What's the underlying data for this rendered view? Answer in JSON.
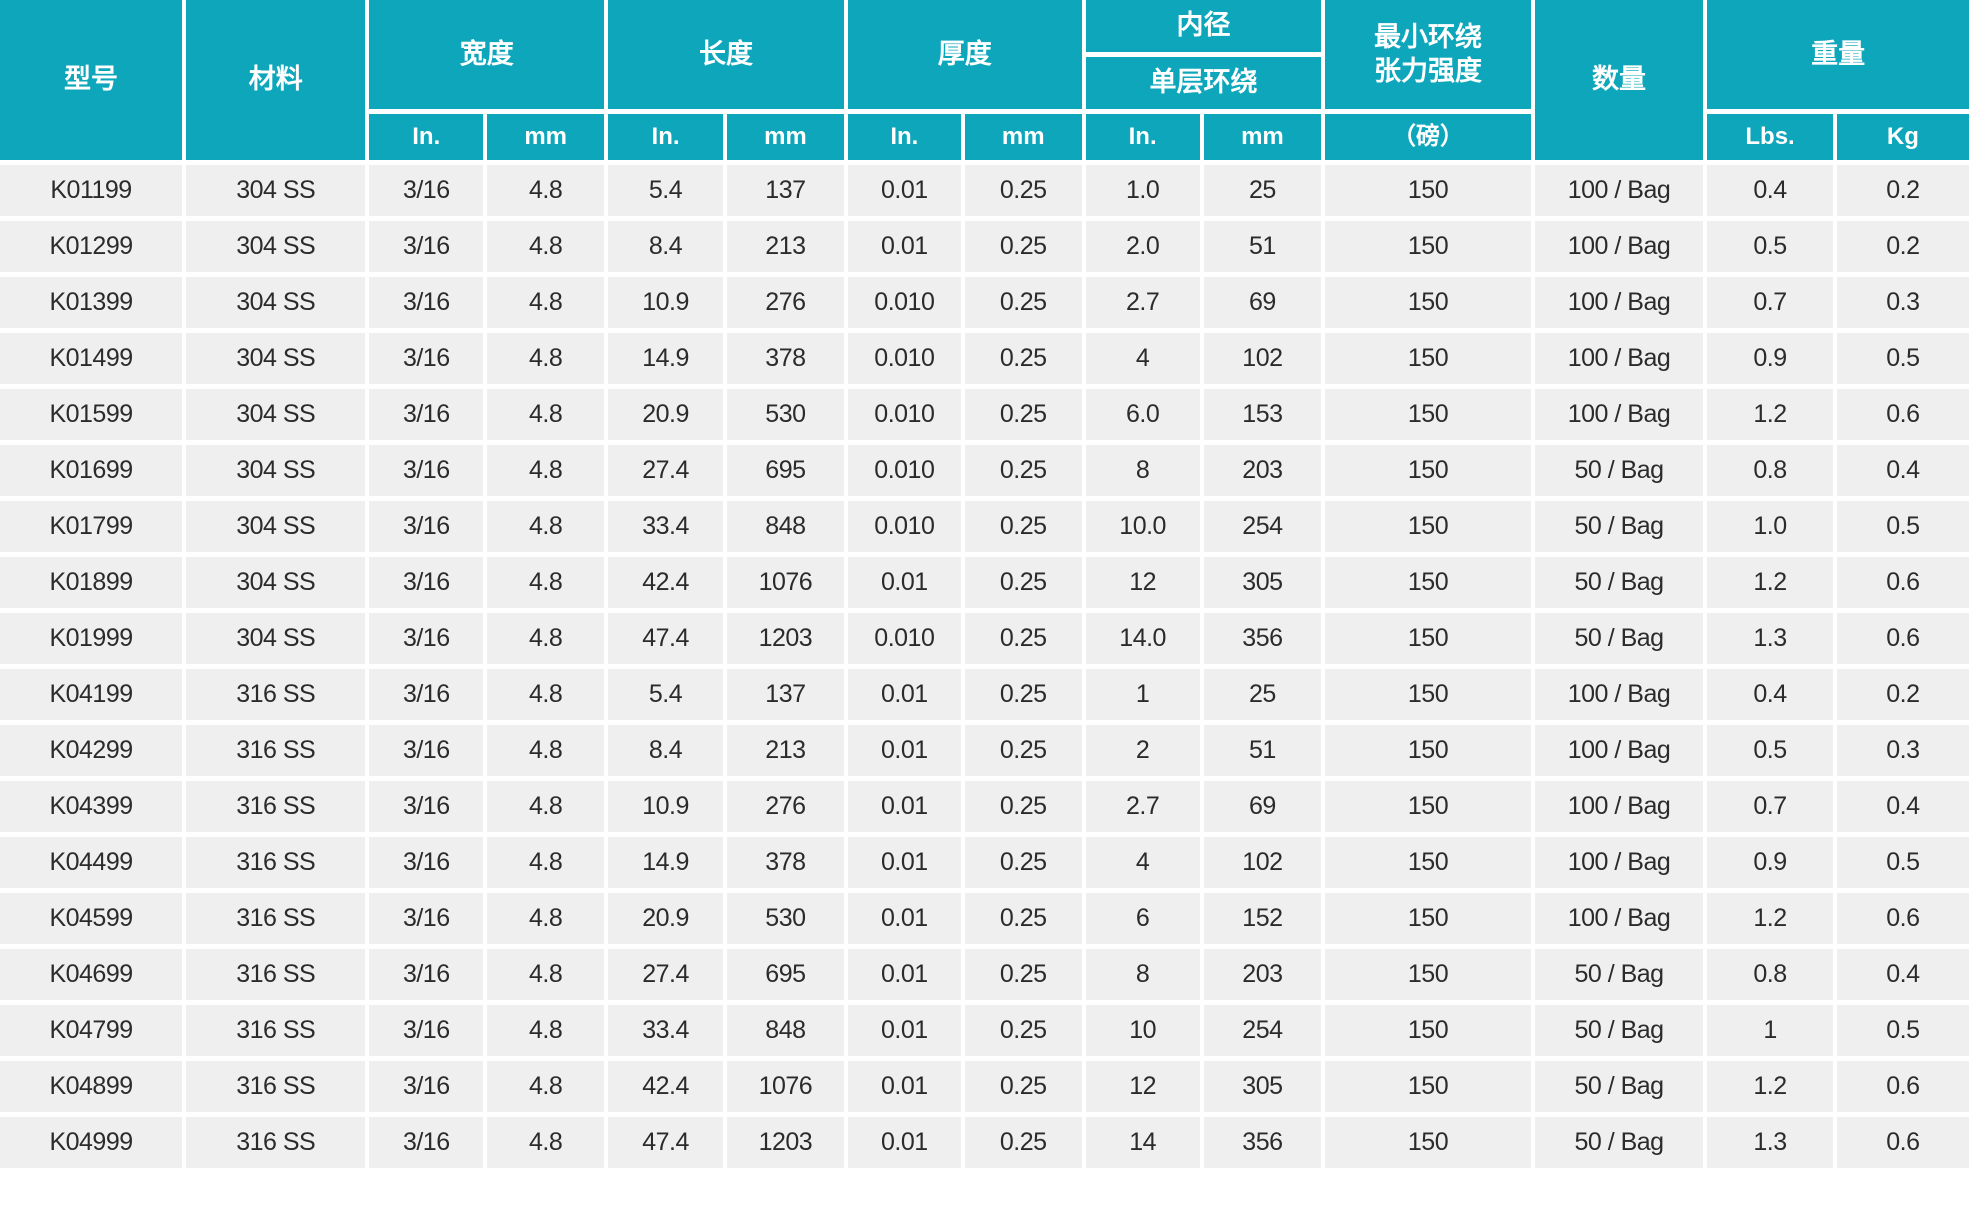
{
  "accent_color": "#0da6bb",
  "row_color": "#efefef",
  "text_color": "#2b2b2b",
  "header": {
    "model": "型号",
    "material": "材料",
    "width": "宽度",
    "length": "长度",
    "thickness": "厚度",
    "inner_diameter": "内径",
    "single_layer_wrap": "单层环绕",
    "min_strength_line1": "最小环绕",
    "min_strength_line2": "张力强度",
    "strength_unit": "（磅）",
    "quantity": "数量",
    "weight": "重量",
    "unit_in": "In.",
    "unit_mm": "mm",
    "unit_lbs": "Lbs.",
    "unit_kg": "Kg"
  },
  "columns": [
    "model",
    "material",
    "width_in",
    "width_mm",
    "length_in",
    "length_mm",
    "thickness_in",
    "thickness_mm",
    "inner_dia_in",
    "inner_dia_mm",
    "min_strength_lbs",
    "quantity",
    "weight_lbs",
    "weight_kg"
  ],
  "rows": [
    [
      "K01199",
      "304 SS",
      "3/16",
      "4.8",
      "5.4",
      "137",
      "0.01",
      "0.25",
      "1.0",
      "25",
      "150",
      "100 / Bag",
      "0.4",
      "0.2"
    ],
    [
      "K01299",
      "304 SS",
      "3/16",
      "4.8",
      "8.4",
      "213",
      "0.01",
      "0.25",
      "2.0",
      "51",
      "150",
      "100 / Bag",
      "0.5",
      "0.2"
    ],
    [
      "K01399",
      "304 SS",
      "3/16",
      "4.8",
      "10.9",
      "276",
      "0.010",
      "0.25",
      "2.7",
      "69",
      "150",
      "100 / Bag",
      "0.7",
      "0.3"
    ],
    [
      "K01499",
      "304 SS",
      "3/16",
      "4.8",
      "14.9",
      "378",
      "0.010",
      "0.25",
      "4",
      "102",
      "150",
      "100 / Bag",
      "0.9",
      "0.5"
    ],
    [
      "K01599",
      "304 SS",
      "3/16",
      "4.8",
      "20.9",
      "530",
      "0.010",
      "0.25",
      "6.0",
      "153",
      "150",
      "100 / Bag",
      "1.2",
      "0.6"
    ],
    [
      "K01699",
      "304 SS",
      "3/16",
      "4.8",
      "27.4",
      "695",
      "0.010",
      "0.25",
      "8",
      "203",
      "150",
      "50 / Bag",
      "0.8",
      "0.4"
    ],
    [
      "K01799",
      "304 SS",
      "3/16",
      "4.8",
      "33.4",
      "848",
      "0.010",
      "0.25",
      "10.0",
      "254",
      "150",
      "50 / Bag",
      "1.0",
      "0.5"
    ],
    [
      "K01899",
      "304 SS",
      "3/16",
      "4.8",
      "42.4",
      "1076",
      "0.01",
      "0.25",
      "12",
      "305",
      "150",
      "50 / Bag",
      "1.2",
      "0.6"
    ],
    [
      "K01999",
      "304 SS",
      "3/16",
      "4.8",
      "47.4",
      "1203",
      "0.010",
      "0.25",
      "14.0",
      "356",
      "150",
      "50 / Bag",
      "1.3",
      "0.6"
    ],
    [
      "K04199",
      "316 SS",
      "3/16",
      "4.8",
      "5.4",
      "137",
      "0.01",
      "0.25",
      "1",
      "25",
      "150",
      "100 / Bag",
      "0.4",
      "0.2"
    ],
    [
      "K04299",
      "316 SS",
      "3/16",
      "4.8",
      "8.4",
      "213",
      "0.01",
      "0.25",
      "2",
      "51",
      "150",
      "100 / Bag",
      "0.5",
      "0.3"
    ],
    [
      "K04399",
      "316 SS",
      "3/16",
      "4.8",
      "10.9",
      "276",
      "0.01",
      "0.25",
      "2.7",
      "69",
      "150",
      "100 / Bag",
      "0.7",
      "0.4"
    ],
    [
      "K04499",
      "316 SS",
      "3/16",
      "4.8",
      "14.9",
      "378",
      "0.01",
      "0.25",
      "4",
      "102",
      "150",
      "100 / Bag",
      "0.9",
      "0.5"
    ],
    [
      "K04599",
      "316 SS",
      "3/16",
      "4.8",
      "20.9",
      "530",
      "0.01",
      "0.25",
      "6",
      "152",
      "150",
      "100 / Bag",
      "1.2",
      "0.6"
    ],
    [
      "K04699",
      "316 SS",
      "3/16",
      "4.8",
      "27.4",
      "695",
      "0.01",
      "0.25",
      "8",
      "203",
      "150",
      "50 / Bag",
      "0.8",
      "0.4"
    ],
    [
      "K04799",
      "316 SS",
      "3/16",
      "4.8",
      "33.4",
      "848",
      "0.01",
      "0.25",
      "10",
      "254",
      "150",
      "50 / Bag",
      "1",
      "0.5"
    ],
    [
      "K04899",
      "316 SS",
      "3/16",
      "4.8",
      "42.4",
      "1076",
      "0.01",
      "0.25",
      "12",
      "305",
      "150",
      "50 / Bag",
      "1.2",
      "0.6"
    ],
    [
      "K04999",
      "316 SS",
      "3/16",
      "4.8",
      "47.4",
      "1203",
      "0.01",
      "0.25",
      "14",
      "356",
      "150",
      "50 / Bag",
      "1.3",
      "0.6"
    ]
  ]
}
